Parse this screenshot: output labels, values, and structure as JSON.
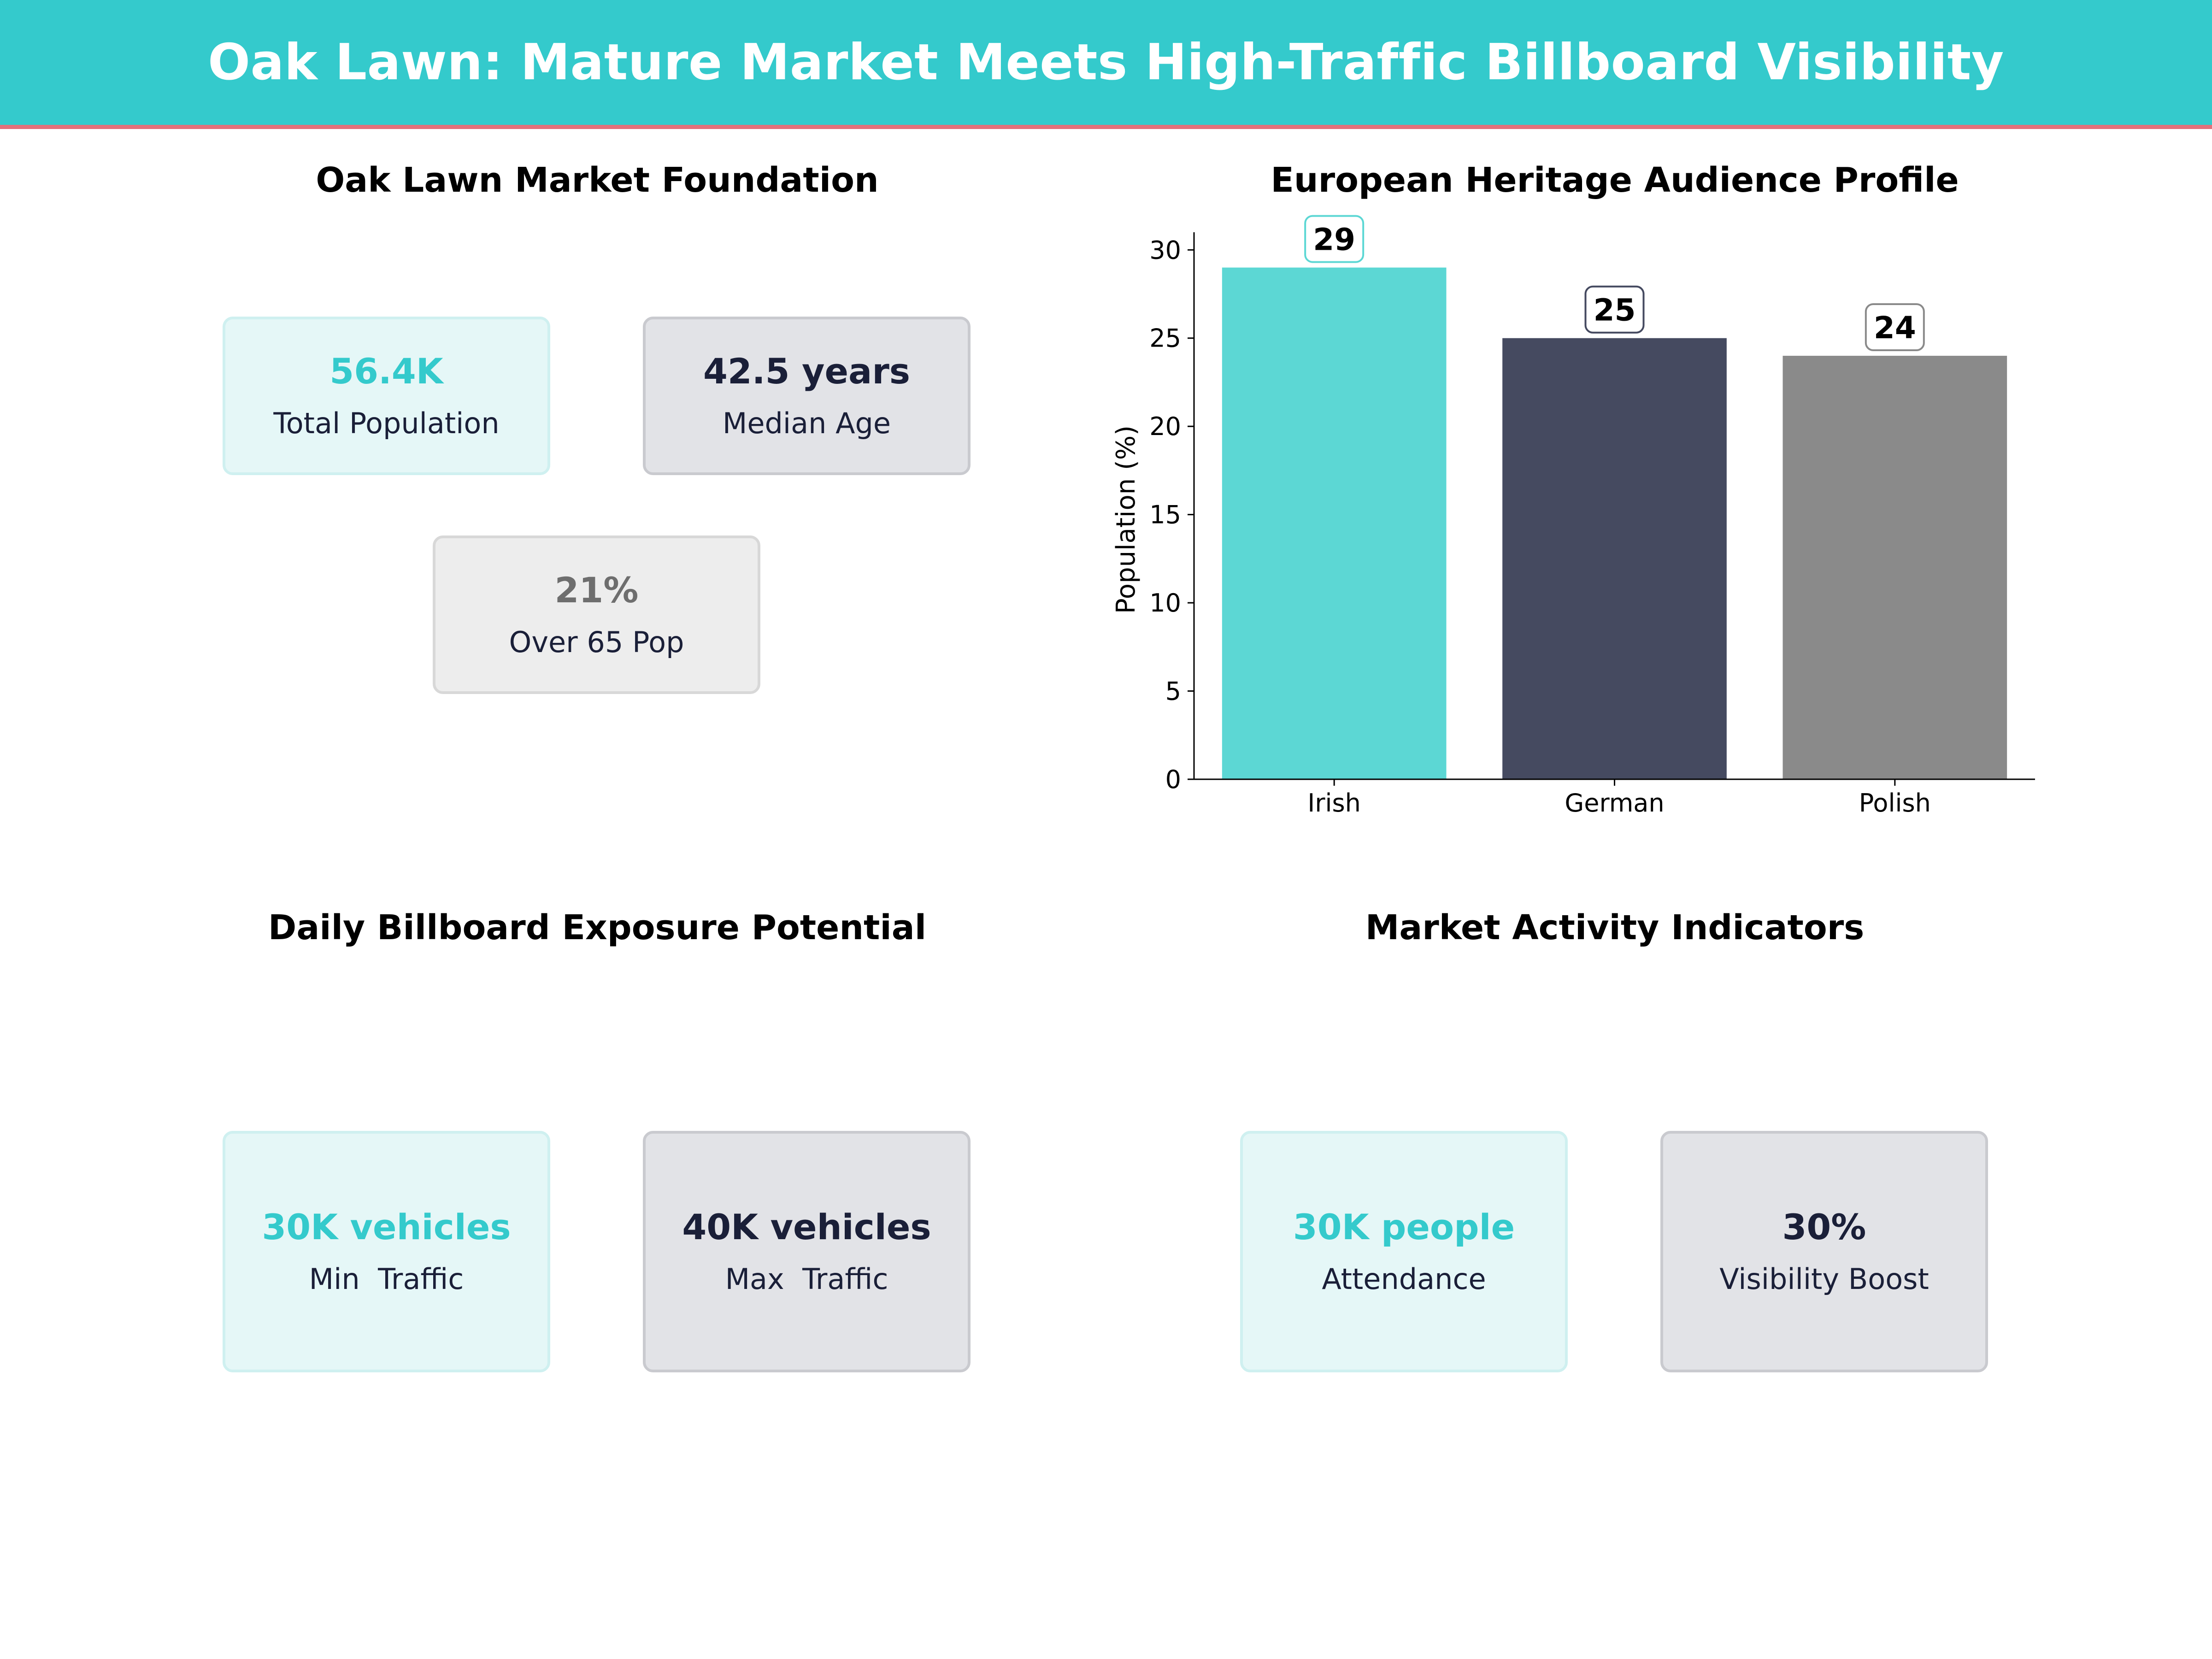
{
  "header": {
    "title": "Oak Lawn: Mature Market Meets High-Traffic Billboard Visibility"
  },
  "panels": {
    "market_foundation": {
      "title": "Oak Lawn Market Foundation",
      "cards": [
        {
          "value": "56.4K",
          "label": "Total Population"
        },
        {
          "value": "42.5 years",
          "label": "Median Age"
        },
        {
          "value": "21%",
          "label": "Over 65 Pop"
        }
      ]
    },
    "billboard_exposure": {
      "title": "Daily Billboard Exposure Potential",
      "cards": [
        {
          "value": "30K vehicles",
          "label": "Min  Traffic"
        },
        {
          "value": "40K vehicles",
          "label": "Max  Traffic"
        }
      ]
    },
    "market_activity": {
      "title": "Market Activity Indicators",
      "cards": [
        {
          "value": "30K people",
          "label": "Attendance"
        },
        {
          "value": "30%",
          "label": "Visibility Boost"
        }
      ]
    }
  },
  "colors": {
    "accent_teal": "#34CACC",
    "bar_teal": "#5CD7D4",
    "bar_navy": "#454A60",
    "bar_grey": "#8A8A8A",
    "header_underline": "#E3707A"
  },
  "chart_data": {
    "type": "bar",
    "title": "European Heritage Audience Profile",
    "categories": [
      "Irish",
      "German",
      "Polish"
    ],
    "values": [
      29,
      25,
      24
    ],
    "value_labels": [
      "29",
      "25",
      "24"
    ],
    "xlabel": "",
    "ylabel": "Population (%)",
    "ylim": [
      0,
      31
    ],
    "yticks": [
      0,
      5,
      10,
      15,
      20,
      25,
      30
    ],
    "ytick_labels": [
      "0",
      "5",
      "10",
      "15",
      "20",
      "25",
      "30"
    ],
    "grid": false,
    "bar_colors": [
      "#5CD7D4",
      "#454A60",
      "#8A8A8A"
    ],
    "label_box_colors": [
      "#5CD7D4",
      "#454A60",
      "#8A8A8A"
    ]
  }
}
